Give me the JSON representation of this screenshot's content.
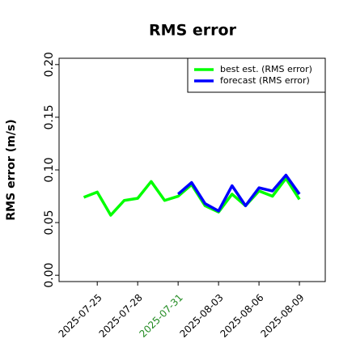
{
  "chart_data": {
    "type": "line",
    "title": "RMS error",
    "ylabel": "RMS error (m/s)",
    "x": [
      "2025-07-24",
      "2025-07-25",
      "2025-07-26",
      "2025-07-27",
      "2025-07-28",
      "2025-07-29",
      "2025-07-30",
      "2025-07-31",
      "2025-08-01",
      "2025-08-02",
      "2025-08-03",
      "2025-08-04",
      "2025-08-05",
      "2025-08-06",
      "2025-08-07",
      "2025-08-08",
      "2025-08-09"
    ],
    "series": [
      {
        "name": "best est. (RMS error)",
        "color": "#00ff00",
        "values": [
          0.074,
          0.079,
          0.057,
          0.071,
          0.073,
          0.089,
          0.071,
          0.075,
          0.086,
          0.066,
          0.06,
          0.077,
          0.066,
          0.08,
          0.075,
          0.092,
          0.072
        ]
      },
      {
        "name": "forecast (RMS error)",
        "color": "#0000ff",
        "values": [
          null,
          null,
          null,
          null,
          null,
          null,
          null,
          0.077,
          0.088,
          0.068,
          0.061,
          0.085,
          0.066,
          0.083,
          0.08,
          0.095,
          0.077
        ]
      }
    ],
    "xlim": [
      "2025-07-22T04:00",
      "2025-08-10T22:00"
    ],
    "xticks": [
      "2025-07-25",
      "2025-07-28",
      "2025-07-31",
      "2025-08-03",
      "2025-08-06",
      "2025-08-09"
    ],
    "xtick_colors": [
      "#000000",
      "#000000",
      "#228b22",
      "#000000",
      "#000000",
      "#000000"
    ],
    "ylim": [
      -0.006,
      0.206
    ],
    "yticks": [
      {
        "value": 0,
        "label": "0.00"
      },
      0.05,
      {
        "value": 0.1,
        "label": "0.10"
      },
      0.15,
      {
        "value": 0.2,
        "label": "0.20"
      }
    ],
    "legend": "upper right"
  }
}
